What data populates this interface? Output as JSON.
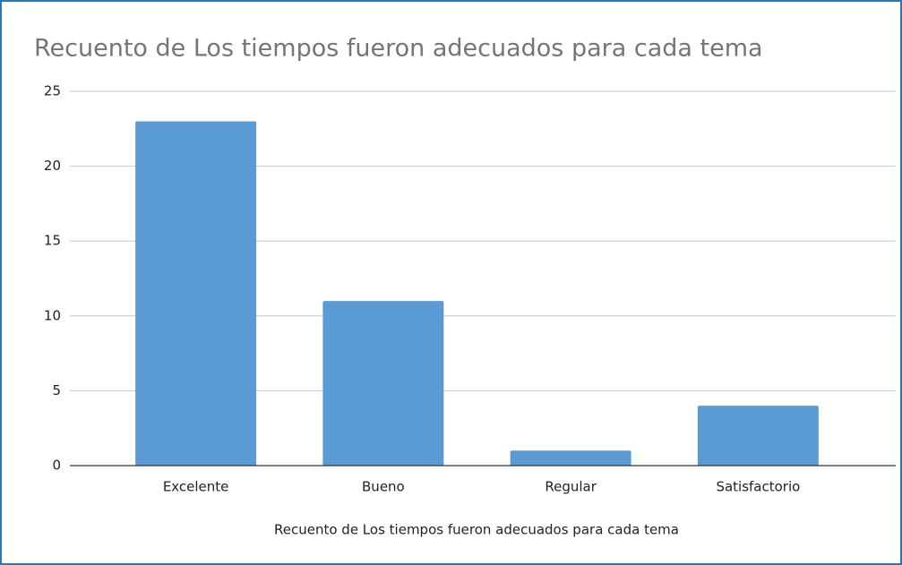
{
  "chart_data": {
    "type": "bar",
    "title": "Recuento de Los tiempos fueron adecuados para cada tema",
    "x_label": "Recuento de Los tiempos fueron adecuados para cada tema",
    "categories": [
      "Excelente",
      "Bueno",
      "Regular",
      "Satisfactorio"
    ],
    "values": [
      23,
      11,
      1,
      4
    ],
    "color": "#5b9bd5",
    "ylim": [
      0,
      25
    ],
    "yticks": [
      0,
      5,
      10,
      15,
      20,
      25
    ],
    "grid": true
  }
}
